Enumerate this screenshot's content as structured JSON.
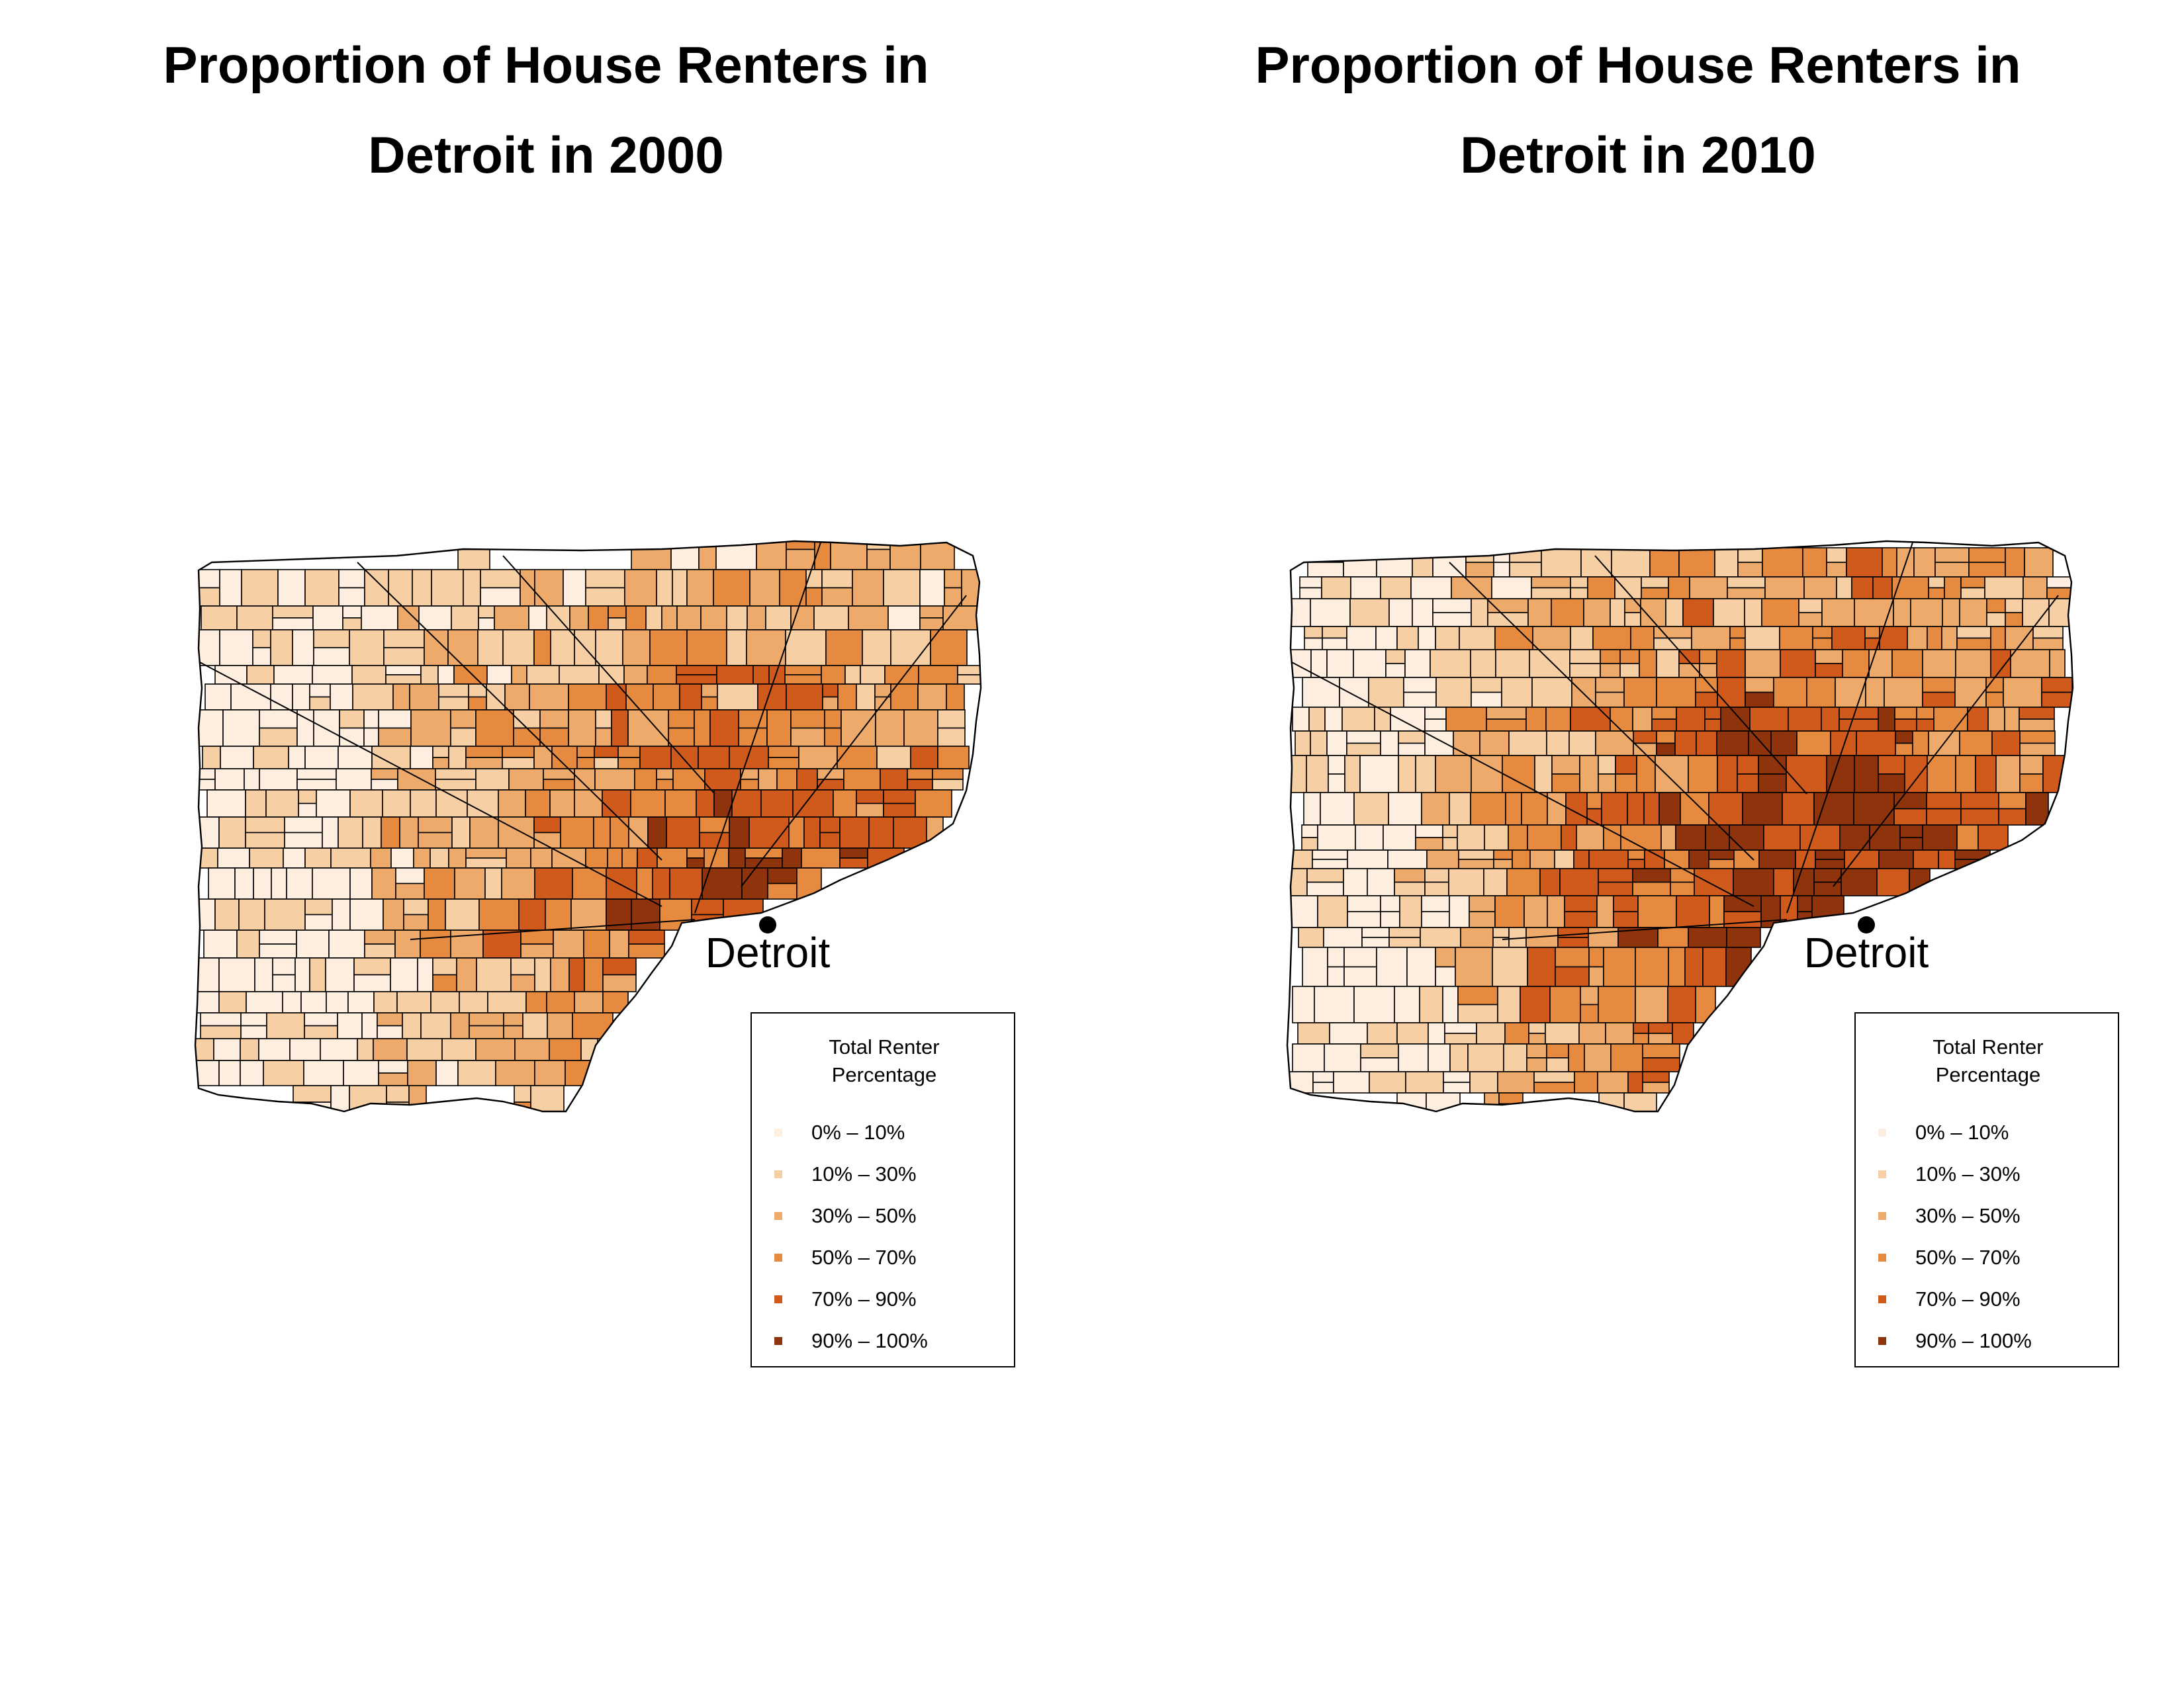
{
  "panels": [
    {
      "title_line1": "Proportion of House Renters in",
      "title_line2": "Detroit in 2000",
      "city_label": "Detroit",
      "map_tint": "mixed-light"
    },
    {
      "title_line1": "Proportion of House Renters in",
      "title_line2": "Detroit in 2010",
      "city_label": "Detroit",
      "map_tint": "mixed-dark"
    }
  ],
  "legend": {
    "title_line1": "Total Renter",
    "title_line2": "Percentage",
    "items": [
      {
        "label": "0% – 10%",
        "color": "#fdeee0"
      },
      {
        "label": "10% – 30%",
        "color": "#f7cfa4"
      },
      {
        "label": "30% – 50%",
        "color": "#eeaa6a"
      },
      {
        "label": "50% – 70%",
        "color": "#e58a3e"
      },
      {
        "label": "70% – 90%",
        "color": "#cf5a1c"
      },
      {
        "label": "90% – 100%",
        "color": "#8f330c"
      }
    ]
  },
  "colors": {
    "tract_outline": "#000000",
    "city_marker": "#000000",
    "background": "#ffffff"
  }
}
